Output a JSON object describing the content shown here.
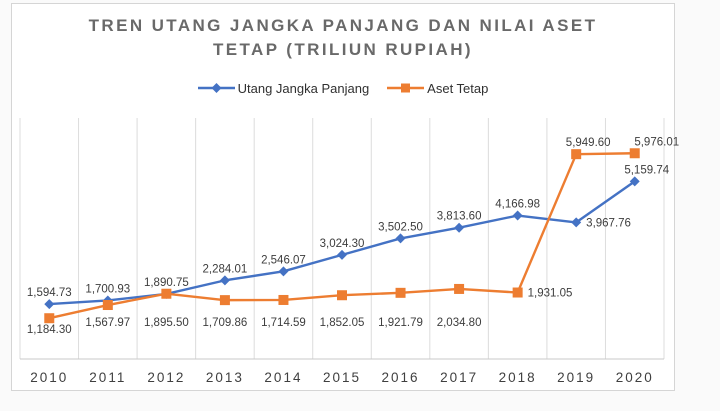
{
  "window": {
    "background": "#fafafa"
  },
  "card": {
    "background": "#ffffff",
    "border_color": "#d5d5d5"
  },
  "chart_data": {
    "type": "line",
    "title": "TREN UTANG JANGKA PANJANG DAN NILAI ASET TETAP (TRILIUN RUPIAH)",
    "title_lines": [
      "TREN UTANG JANGKA PANJANG DAN NILAI ASET",
      "TETAP (TRILIUN RUPIAH)"
    ],
    "categories": [
      "2010",
      "2011",
      "2012",
      "2013",
      "2014",
      "2015",
      "2016",
      "2017",
      "2018",
      "2019",
      "2020"
    ],
    "series": [
      {
        "name": "Utang Jangka Panjang",
        "color": "#4472C4",
        "marker": "diamond",
        "values": [
          1594.73,
          1700.93,
          1890.75,
          2284.01,
          2546.07,
          3024.3,
          3502.5,
          3813.6,
          4166.98,
          3967.76,
          5159.74
        ],
        "labels": [
          "1,594.73",
          "1,700.93",
          "1,890.75",
          "2,284.01",
          "2,546.07",
          "3,024.30",
          "3,502.50",
          "3,813.60",
          "4,166.98",
          "3,967.76",
          "5,159.74"
        ],
        "label_placements": [
          "above",
          "above",
          "above",
          "above",
          "above",
          "above",
          "above",
          "above",
          "above",
          "right",
          "above@12"
        ]
      },
      {
        "name": "Aset Tetap",
        "color": "#ED7D31",
        "marker": "square",
        "values": [
          1184.3,
          1567.97,
          1895.5,
          1709.86,
          1714.59,
          1852.05,
          1921.79,
          2034.8,
          1931.05,
          5949.6,
          5976.01
        ],
        "labels": [
          "1,184.30",
          "1,567.97",
          "1,895.50",
          "1,709.86",
          "1,714.59",
          "1,852.05",
          "1,921.79",
          "2,034.80",
          "1,931.05",
          "5,949.60",
          "5,976.01"
        ],
        "label_placements": [
          "below",
          "below",
          "below",
          "below",
          "below",
          "below",
          "below",
          "below",
          "right",
          "above@12",
          "above@22"
        ],
        "below_label_row_baseline": 208
      }
    ],
    "ylim": [
      0,
      7000
    ],
    "grid": "vertical-only",
    "gridline_color": "#dcdcdc",
    "axis_line_color": "#c9c9c9",
    "data_label_color": "#3d3d3d",
    "axis_label_color": "#3f3f3f",
    "title_color": "#696969",
    "legend_position": "top"
  }
}
